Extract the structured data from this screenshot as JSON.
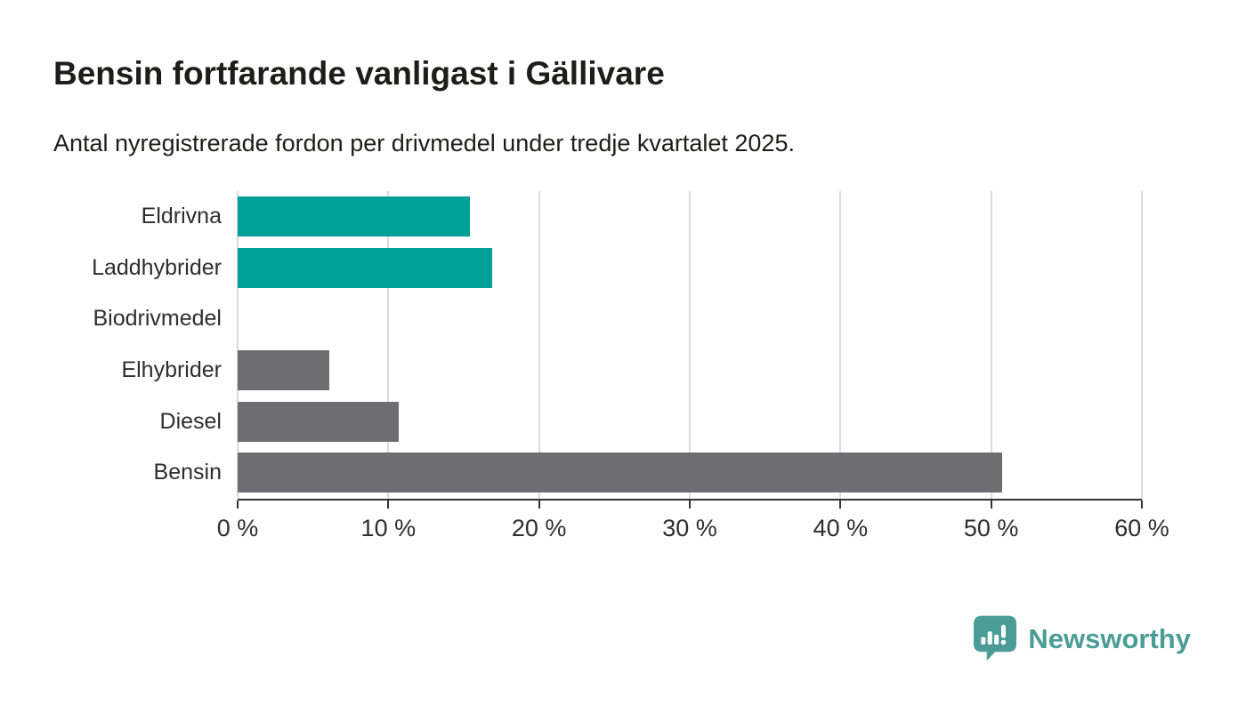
{
  "header": {
    "title": "Bensin fortfarande vanligast i Gällivare",
    "subtitle": "Antal nyregistrerade fordon per drivmedel under tredje kvartalet 2025."
  },
  "chart_data": {
    "type": "bar",
    "orientation": "horizontal",
    "title": "Bensin fortfarande vanligast i Gällivare",
    "subtitle": "Antal nyregistrerade fordon per drivmedel under tredje kvartalet 2025.",
    "categories": [
      "Eldrivna",
      "Laddhybrider",
      "Biodrivmedel",
      "Elhybrider",
      "Diesel",
      "Bensin"
    ],
    "values": [
      15.4,
      16.9,
      0,
      6.1,
      10.7,
      50.7
    ],
    "unit": "%",
    "bar_colors": [
      "#00a098",
      "#00a098",
      "#6e6e72",
      "#6e6e72",
      "#6e6e72",
      "#6e6e72"
    ],
    "xlim": [
      0,
      60
    ],
    "x_tick_values": [
      0,
      10,
      20,
      30,
      40,
      50,
      60
    ],
    "x_tick_labels": [
      "0 %",
      "10 %",
      "20 %",
      "30 %",
      "40 %",
      "50 %",
      "60 %"
    ],
    "grid": "vertical-gridlines-on",
    "legend": "none",
    "xlabel": "",
    "ylabel": ""
  },
  "colors": {
    "accent_teal": "#00a098",
    "neutral_gray": "#6e6e72",
    "gridline": "#dbdbdb",
    "axis": "#333333",
    "text": "#1d1d1b",
    "brand": "#4a9c96",
    "background": "#ffffff"
  },
  "footer": {
    "brand": "Newsworthy",
    "logo_icon": "speech-bubble-bar-chart-exclamation"
  }
}
